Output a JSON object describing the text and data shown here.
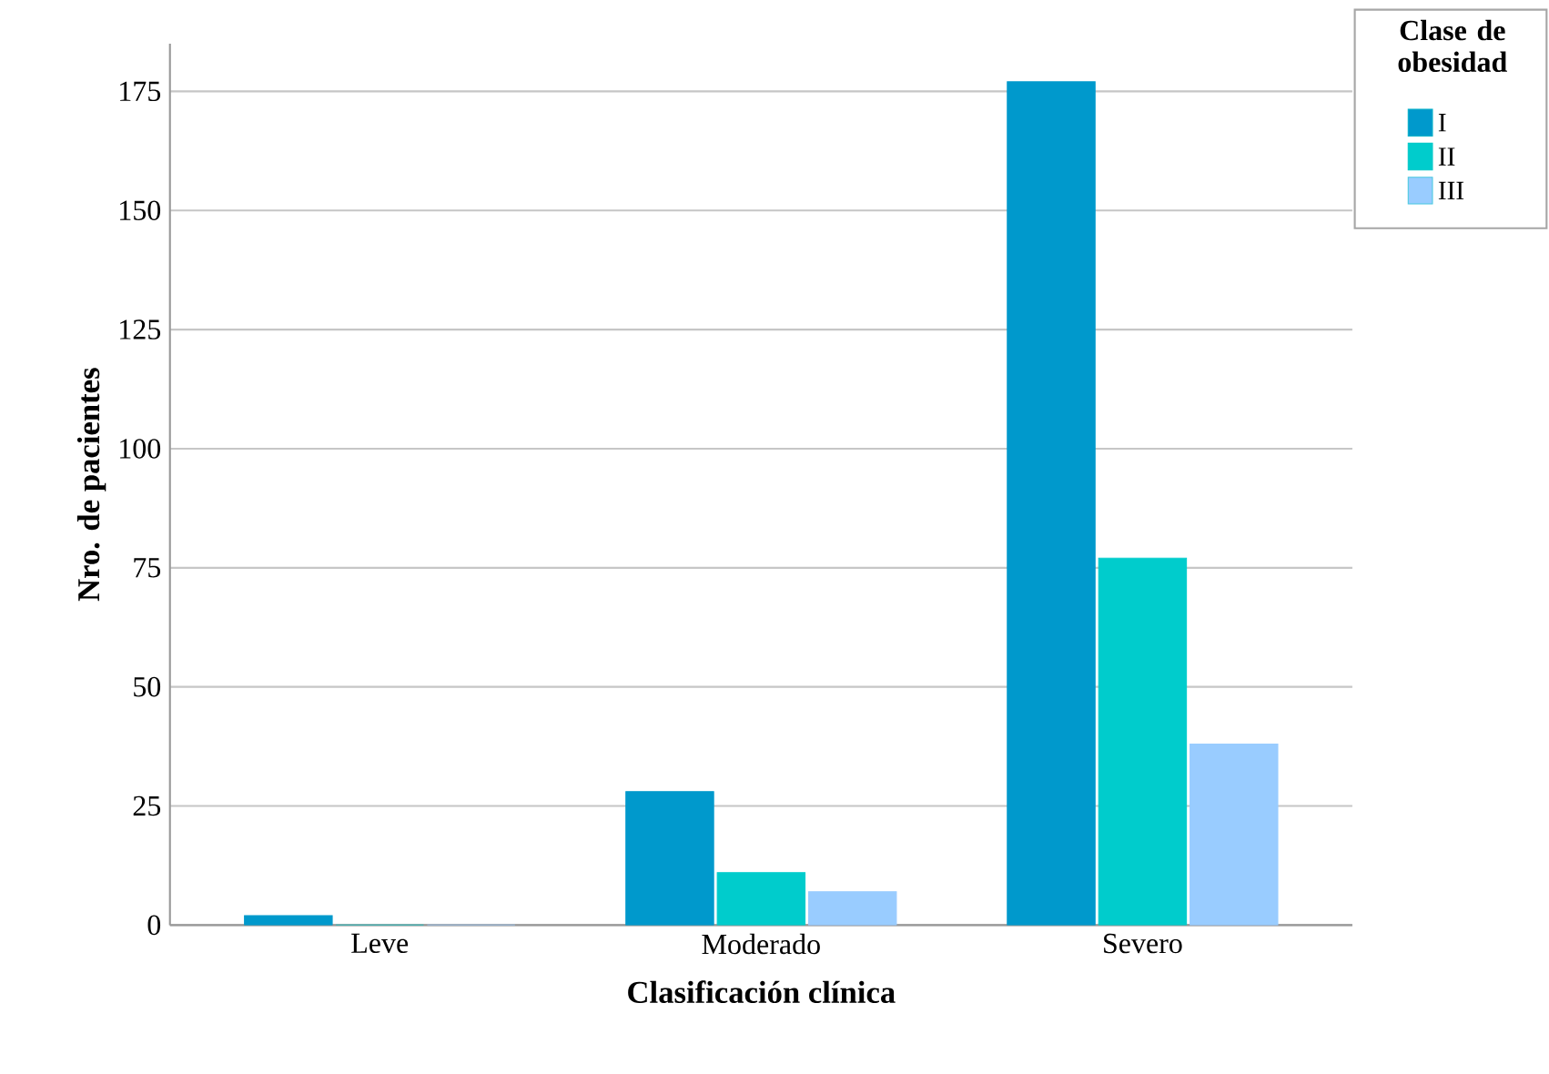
{
  "chart_data": {
    "type": "bar",
    "xlabel": "Clasificación clínica",
    "ylabel": "Nro. de pacientes",
    "legend_title": "Clase de obesidad",
    "categories": [
      "Leve",
      "Moderado",
      "Severo"
    ],
    "series": [
      {
        "name": "I",
        "color": "#0099cc",
        "values": [
          2,
          28,
          177
        ]
      },
      {
        "name": "II",
        "color": "#00cccc",
        "values": [
          0,
          11,
          77
        ]
      },
      {
        "name": "III",
        "color": "#99ccff",
        "values": [
          0,
          7,
          38
        ]
      }
    ],
    "ylim": [
      0,
      185
    ],
    "yticks": [
      0,
      25,
      50,
      75,
      100,
      125,
      150,
      175
    ],
    "grid": "y",
    "legend": "top right"
  }
}
